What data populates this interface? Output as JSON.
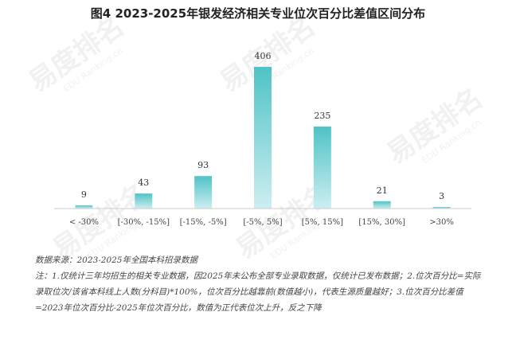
{
  "title": "图4  2023-2025年银发经济相关专业位次百分比差值区间分布",
  "watermark": {
    "brand": "易度排名",
    "brand_en": "EDU Ranking.cn"
  },
  "chart_data": {
    "type": "bar",
    "categories": [
      "< -30%",
      "[-30%, -15%]",
      "[-15%, -5%]",
      "[-5%, 5%]",
      "[5%, 15%]",
      "[15%, 30%]",
      ">30%"
    ],
    "values": [
      9,
      43,
      93,
      406,
      235,
      21,
      3
    ],
    "ylim": [
      0,
      406
    ],
    "grid": false,
    "legend": "none",
    "bar_color_top": "#4fc3c6",
    "bar_color_bottom": "#cdeef0"
  },
  "source_text": "数据来源：2023-2025年全国本科招录数据",
  "note_text": "注：1.仅统计三年均招生的相关专业数据，因2025年未公布全部专业录取数据，仅统计已发布数据；2.位次百分比=实际录取位次/该省本科线上人数(分科目)*100%，位次百分比越靠前(数值越小)，代表生源质量越好；3.位次百分比差值=2023年位次百分比-2025年位次百分比，数值为正代表位次上升，反之下降"
}
